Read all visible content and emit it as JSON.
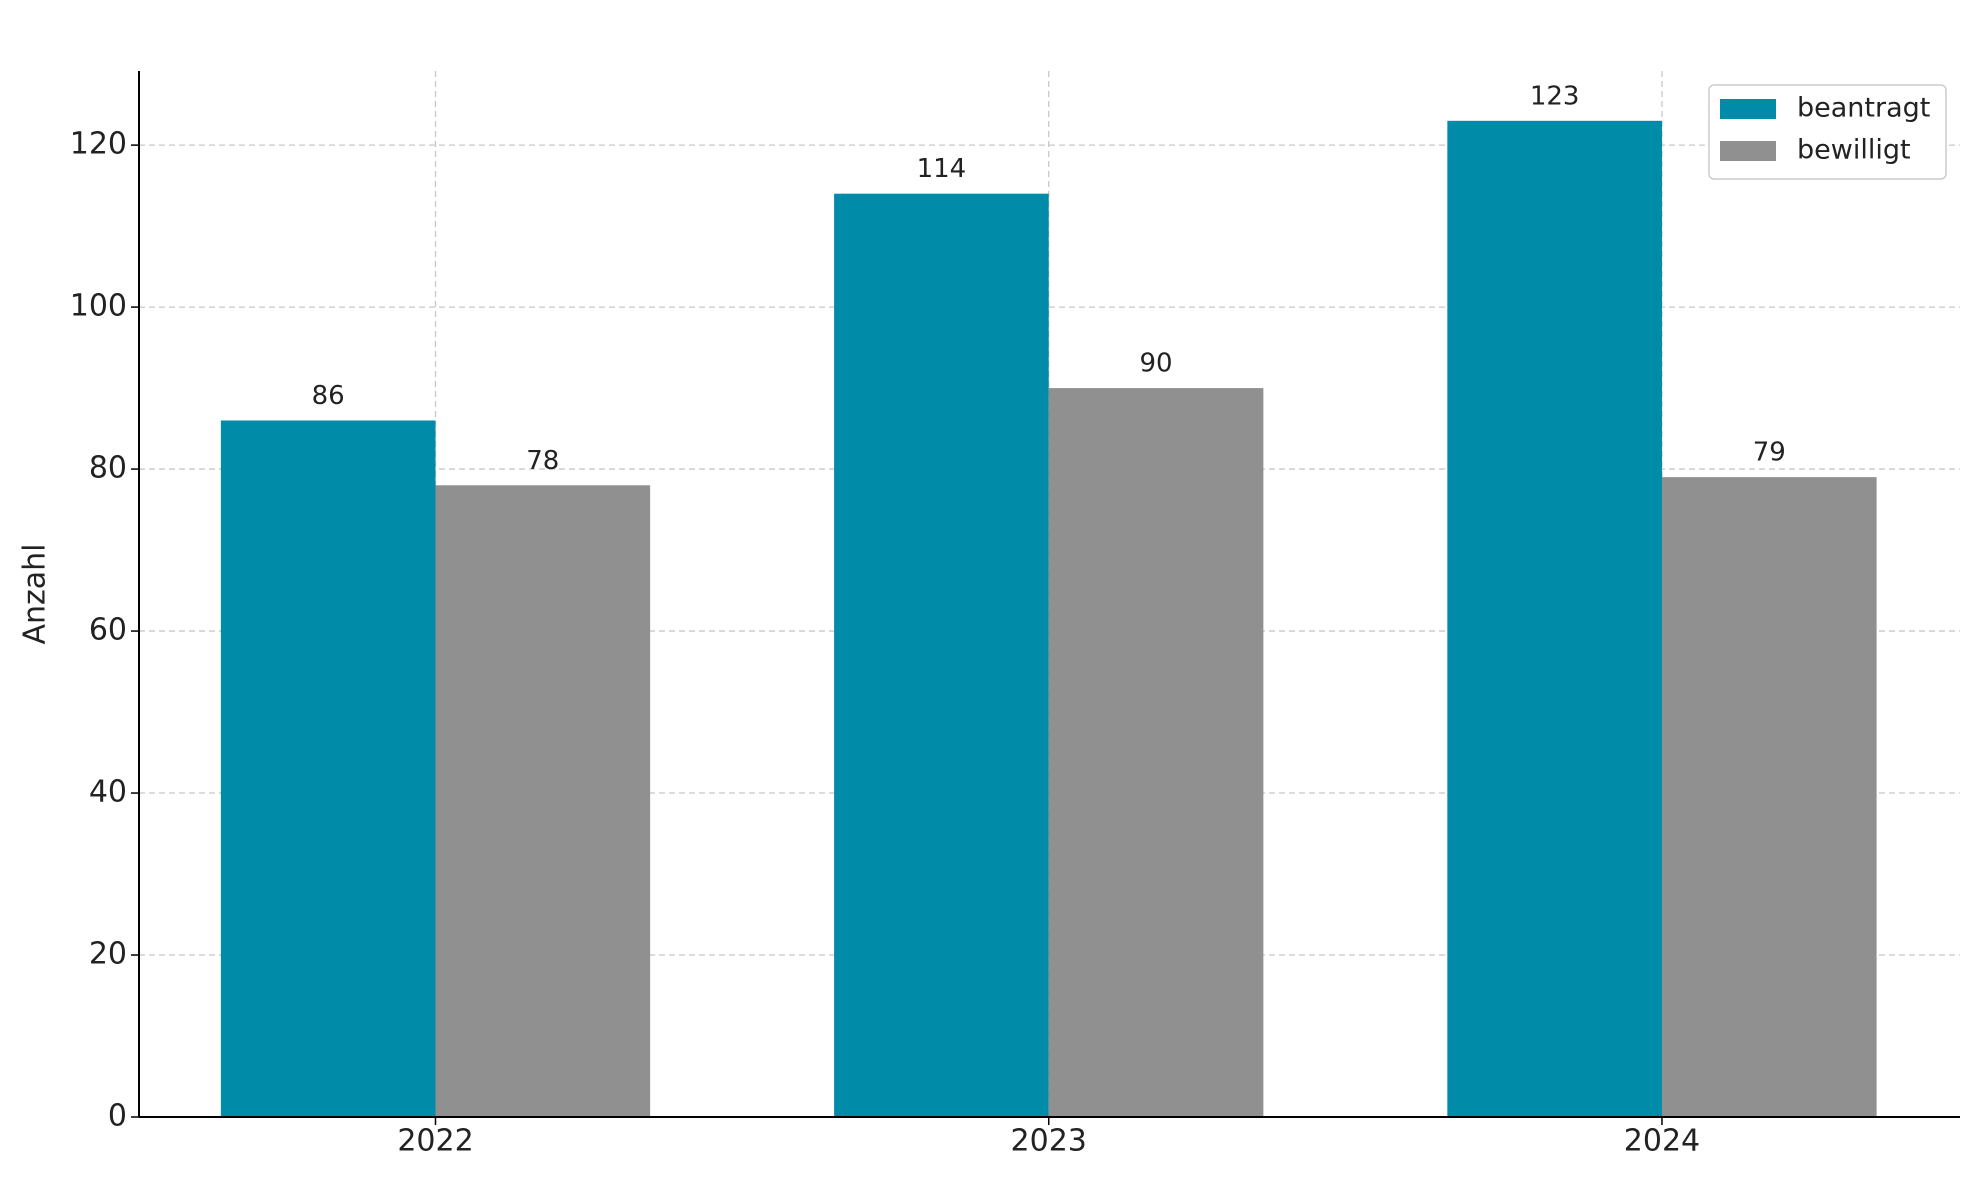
{
  "chart_data": {
    "type": "bar",
    "y_label": "Anzahl",
    "categories": [
      "2022",
      "2023",
      "2024"
    ],
    "series": [
      {
        "name": "beantragt",
        "color": "#008ca8",
        "values": [
          86,
          114,
          123
        ]
      },
      {
        "name": "bewilligt",
        "color": "#909090",
        "values": [
          78,
          90,
          79
        ]
      }
    ],
    "ylim": [
      0,
      129.15
    ],
    "yticks": [
      0,
      20,
      40,
      60,
      80,
      100,
      120
    ],
    "grid": true,
    "legend": "upper right"
  }
}
